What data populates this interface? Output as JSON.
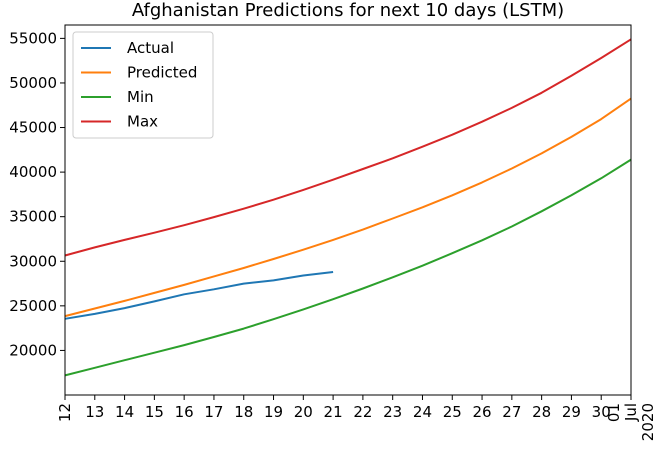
{
  "chart_data": {
    "type": "line",
    "title": "Afghanistan Predictions for next 10 days (LSTM)",
    "xlabel": "",
    "ylabel": "",
    "x_ticks": [
      "12",
      "13",
      "14",
      "15",
      "16",
      "17",
      "18",
      "19",
      "20",
      "21",
      "22",
      "23",
      "24",
      "25",
      "26",
      "27",
      "28",
      "29",
      "30"
    ],
    "x_last_tick": [
      "01",
      "Jul",
      "2020"
    ],
    "y_ticks": [
      20000,
      25000,
      30000,
      35000,
      40000,
      45000,
      50000,
      55000
    ],
    "y_tick_labels": [
      "20000",
      "25000",
      "30000",
      "35000",
      "40000",
      "45000",
      "50000",
      "55000"
    ],
    "xlim": [
      12,
      31
    ],
    "ylim": [
      15000,
      56500
    ],
    "grid": false,
    "legend_position": "upper-left",
    "series": [
      {
        "name": "Actual",
        "color": "#1f77b4",
        "x": [
          12,
          13,
          14,
          15,
          16,
          17,
          18,
          19,
          20,
          21
        ],
        "y": [
          23550,
          24100,
          24750,
          25500,
          26300,
          26850,
          27500,
          27850,
          28400,
          28800
        ]
      },
      {
        "name": "Predicted",
        "color": "#ff7f0e",
        "x": [
          12,
          13,
          14,
          15,
          16,
          17,
          18,
          19,
          20,
          21,
          22,
          23,
          24,
          25,
          26,
          27,
          28,
          29,
          30,
          31
        ],
        "y": [
          23850,
          24700,
          25550,
          26450,
          27350,
          28300,
          29250,
          30250,
          31300,
          32400,
          33550,
          34800,
          36050,
          37400,
          38850,
          40400,
          42100,
          43950,
          45950,
          48250
        ]
      },
      {
        "name": "Min",
        "color": "#2ca02c",
        "x": [
          12,
          13,
          14,
          15,
          16,
          17,
          18,
          19,
          20,
          21,
          22,
          23,
          24,
          25,
          26,
          27,
          28,
          29,
          30,
          31
        ],
        "y": [
          17200,
          18050,
          18900,
          19750,
          20600,
          21500,
          22450,
          23500,
          24600,
          25750,
          26950,
          28200,
          29500,
          30900,
          32350,
          33900,
          35600,
          37400,
          39300,
          41400
        ]
      },
      {
        "name": "Max",
        "color": "#d62728",
        "x": [
          12,
          13,
          14,
          15,
          16,
          17,
          18,
          19,
          20,
          21,
          22,
          23,
          24,
          25,
          26,
          27,
          28,
          29,
          30,
          31
        ],
        "y": [
          30650,
          31550,
          32400,
          33200,
          34050,
          34950,
          35900,
          36900,
          38000,
          39150,
          40350,
          41550,
          42850,
          44200,
          45650,
          47200,
          48900,
          50800,
          52800,
          54900
        ]
      }
    ]
  }
}
